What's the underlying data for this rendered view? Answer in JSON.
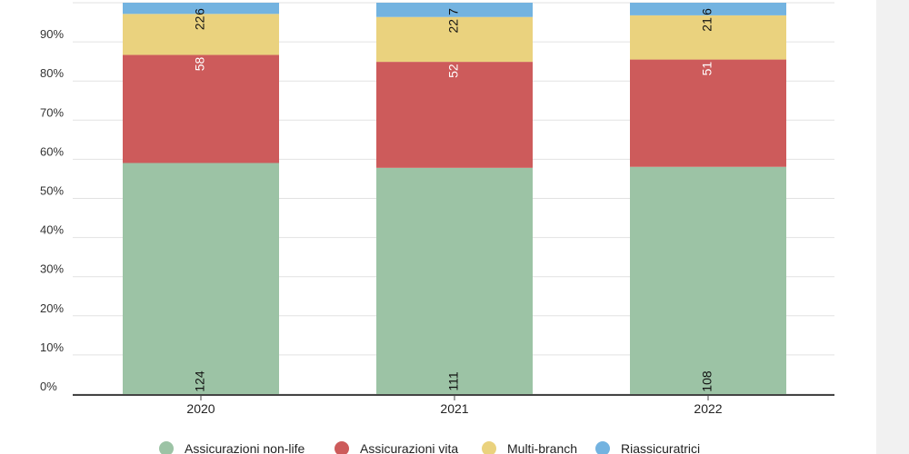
{
  "colors": {
    "Assicurazioni non-life": "#9cc3a5",
    "Assicurazioni vita": "#cd5b5b",
    "Multi-branch": "#ead27e",
    "Riassicuratrici": "#73b3e0"
  },
  "chart_data": {
    "type": "bar",
    "stacked": "percent",
    "categories": [
      "2020",
      "2021",
      "2022"
    ],
    "series": [
      {
        "name": "Assicurazioni non-life",
        "values": [
          124,
          111,
          108
        ]
      },
      {
        "name": "Assicurazioni vita",
        "values": [
          58,
          52,
          51
        ]
      },
      {
        "name": "Multi-branch",
        "values": [
          22,
          22,
          21
        ]
      },
      {
        "name": "Riassicuratrici",
        "values": [
          6,
          7,
          6
        ]
      }
    ],
    "y_ticks": [
      "0%",
      "10%",
      "20%",
      "30%",
      "40%",
      "50%",
      "60%",
      "70%",
      "80%",
      "90%"
    ],
    "ylim": [
      0,
      100
    ],
    "grid": true,
    "legend": "bottom",
    "title": "",
    "xlabel": "",
    "ylabel": ""
  }
}
